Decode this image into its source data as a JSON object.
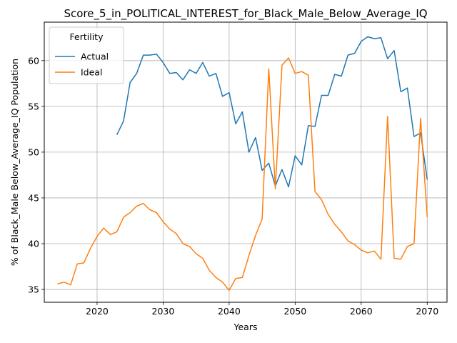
{
  "chart_data": {
    "type": "line",
    "title": "Score_5_in_POLITICAL_INTEREST_for_Black_Male_Below_Average_IQ",
    "xlabel": "Years",
    "ylabel": "% of Black_Male Below_Average_IQ Population",
    "xlim": [
      2012,
      2073
    ],
    "ylim": [
      33.6,
      64.2
    ],
    "xticks": [
      2020,
      2030,
      2040,
      2050,
      2060,
      2070
    ],
    "yticks": [
      35,
      40,
      45,
      50,
      55,
      60
    ],
    "grid": true,
    "legend": {
      "title": "Fertility",
      "position": "top-left"
    },
    "series": [
      {
        "name": "Actual",
        "color": "#1f77b4",
        "x": [
          2023,
          2024,
          2025,
          2026,
          2027,
          2028,
          2029,
          2030,
          2031,
          2032,
          2033,
          2034,
          2035,
          2036,
          2037,
          2038,
          2039,
          2040,
          2041,
          2042,
          2043,
          2044,
          2045,
          2046,
          2047,
          2048,
          2049,
          2050,
          2051,
          2052,
          2053,
          2054,
          2055,
          2056,
          2057,
          2058,
          2059,
          2060,
          2061,
          2062,
          2063,
          2064,
          2065,
          2066,
          2067,
          2068,
          2069,
          2070
        ],
        "values": [
          51.9,
          53.4,
          57.6,
          58.6,
          60.6,
          60.6,
          60.7,
          59.8,
          58.6,
          58.7,
          57.9,
          59.0,
          58.6,
          59.8,
          58.3,
          58.6,
          56.1,
          56.5,
          53.1,
          54.4,
          50.0,
          51.6,
          48.0,
          48.8,
          46.3,
          48.1,
          46.2,
          49.6,
          48.6,
          52.9,
          52.8,
          56.2,
          56.2,
          58.5,
          58.3,
          60.6,
          60.8,
          62.1,
          62.6,
          62.4,
          62.5,
          60.2,
          61.1,
          56.6,
          57.0,
          51.7,
          52.1,
          47.0
        ]
      },
      {
        "name": "Ideal",
        "color": "#ff7f0e",
        "x": [
          2014,
          2015,
          2016,
          2017,
          2018,
          2019,
          2020,
          2021,
          2022,
          2023,
          2024,
          2025,
          2026,
          2027,
          2028,
          2029,
          2030,
          2031,
          2032,
          2033,
          2034,
          2035,
          2036,
          2037,
          2038,
          2039,
          2040,
          2041,
          2042,
          2043,
          2044,
          2045,
          2046,
          2047,
          2048,
          2049,
          2050,
          2051,
          2052,
          2053,
          2054,
          2055,
          2056,
          2057,
          2058,
          2059,
          2060,
          2061,
          2062,
          2063,
          2064,
          2065,
          2066,
          2067,
          2068,
          2069,
          2070
        ],
        "values": [
          35.6,
          35.8,
          35.5,
          37.8,
          37.9,
          39.5,
          40.8,
          41.7,
          41.0,
          41.3,
          42.9,
          43.4,
          44.1,
          44.4,
          43.7,
          43.4,
          42.4,
          41.6,
          41.1,
          40.0,
          39.7,
          38.9,
          38.4,
          37.1,
          36.3,
          35.8,
          34.9,
          36.2,
          36.3,
          38.7,
          40.9,
          42.7,
          59.1,
          46.0,
          59.5,
          60.3,
          58.6,
          58.8,
          58.4,
          45.7,
          44.8,
          43.2,
          42.1,
          41.3,
          40.3,
          39.9,
          39.3,
          39.0,
          39.2,
          38.3,
          53.9,
          38.4,
          38.3,
          39.7,
          40.0,
          53.7,
          42.9
        ]
      }
    ]
  }
}
